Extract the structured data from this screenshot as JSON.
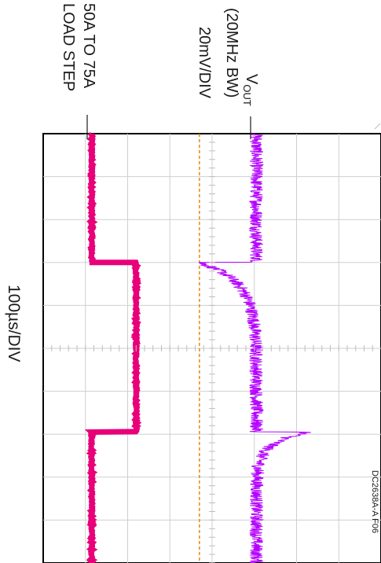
{
  "chart_data": {
    "type": "line",
    "instrument": "oscilloscope",
    "orientation": "rotated-90-clockwise",
    "timebase_label": "100µs/DIV",
    "figure_code": "DC2638A-A F06",
    "grid": true,
    "x_divisions": 10,
    "y_divisions": 8,
    "x_range_div": [
      0,
      10
    ],
    "y_range_div": [
      -4,
      4
    ],
    "series": [
      {
        "id": "vout",
        "label_main": "V",
        "label_sub": "OUT",
        "label_bw": "(20MHz BW)",
        "label_scale": "20mV/DIV",
        "color": "#b400ff",
        "style": "noisy-step-response",
        "baseline_div": 1.05,
        "noise_div": 0.1,
        "events": [
          {
            "t_div": 3.0,
            "dv_div": -1.35,
            "tau_div": 0.45
          },
          {
            "t_div": 6.95,
            "dv_div": 1.25,
            "tau_div": 0.25
          }
        ]
      },
      {
        "id": "load",
        "label_top": "50A TO 75A",
        "label_bottom": "LOAD STEP",
        "color": "#e8007a",
        "style": "step",
        "segments": [
          {
            "t_start_div": 0.0,
            "t_end_div": 3.0,
            "level_div": -2.85
          },
          {
            "t_start_div": 3.0,
            "t_end_div": 6.95,
            "level_div": -1.8
          },
          {
            "t_start_div": 6.95,
            "t_end_div": 10.0,
            "level_div": -2.85
          }
        ]
      }
    ],
    "reference_line": {
      "level_div": -0.3,
      "color": "#e07f00",
      "style": "dashed"
    }
  },
  "labels": {
    "vout_main": "V",
    "vout_sub": "OUT",
    "vout_bw": "(20MHz BW)",
    "vout_scale": "20mV/DIV",
    "load_top": "50A TO 75A",
    "load_bottom": "LOAD STEP",
    "timebase": "100µs/DIV",
    "figure_code": "DC2638A-A F06"
  }
}
